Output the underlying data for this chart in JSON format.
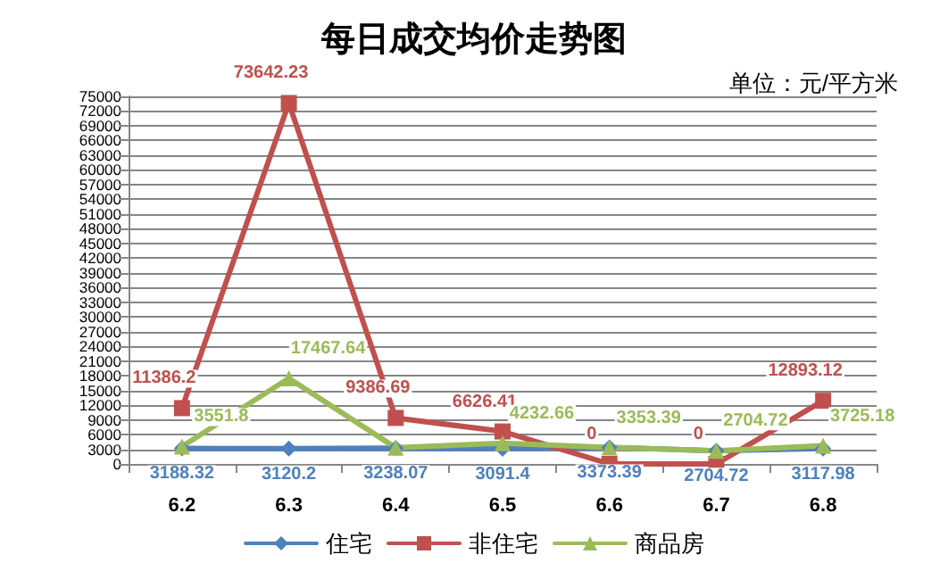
{
  "chart_data": {
    "type": "line",
    "title": "每日成交均价走势图",
    "annotations": [
      "单位：元/平方米"
    ],
    "categories": [
      "6.2",
      "6.3",
      "6.4",
      "6.5",
      "6.6",
      "6.7",
      "6.8"
    ],
    "series": [
      {
        "name": "住宅",
        "color": "#4f81bd",
        "marker": "diamond",
        "values": [
          3188.32,
          3120.2,
          3238.07,
          3091.4,
          3373.39,
          2704.72,
          3117.98
        ],
        "value_labels": [
          "3188.32",
          "3120.2",
          "3238.07",
          "3091.4",
          "3373.39",
          "2704.72",
          "3117.98"
        ]
      },
      {
        "name": "非住宅",
        "color": "#c0504d",
        "marker": "square",
        "values": [
          11386.2,
          73642.23,
          9386.69,
          6626.41,
          0,
          0,
          12893.12
        ],
        "value_labels": [
          "11386.2",
          "73642.23",
          "9386.69",
          "6626.41",
          "0",
          "0",
          "12893.12"
        ]
      },
      {
        "name": "商品房",
        "color": "#9bbb59",
        "marker": "triangle",
        "values": [
          3551.8,
          17467.64,
          3300,
          4232.66,
          3353.39,
          2704.72,
          3725.18
        ],
        "value_labels": [
          "3551.8",
          "17467.64",
          null,
          "4232.66",
          "3353.39",
          "2704.72",
          "3725.18"
        ]
      }
    ],
    "ylim": [
      0,
      75000
    ],
    "yticks": [
      0,
      3000,
      6000,
      9000,
      12000,
      15000,
      18000,
      21000,
      24000,
      27000,
      30000,
      33000,
      36000,
      39000,
      42000,
      45000,
      48000,
      51000,
      54000,
      57000,
      60000,
      63000,
      66000,
      69000,
      72000,
      75000
    ],
    "grid": "y",
    "legend": "bottom",
    "line_style": "solid"
  }
}
